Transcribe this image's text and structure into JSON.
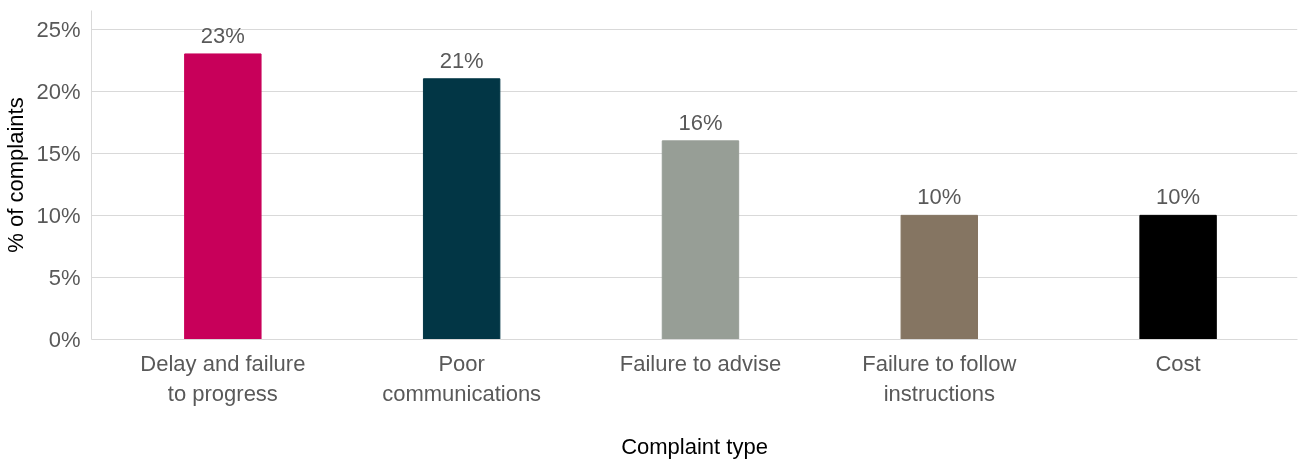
{
  "chart_data": {
    "type": "bar",
    "xlabel": "Complaint type",
    "ylabel": "% of complaints",
    "categories": [
      "Delay and failure\nto progress",
      "Poor\ncommunications",
      "Failure to advise",
      "Failure to follow\ninstructions",
      "Cost"
    ],
    "values": [
      23,
      21,
      16,
      10,
      10
    ],
    "colors": [
      "#c8005a",
      "#023645",
      "#979e96",
      "#857562",
      "#000000"
    ],
    "value_labels": [
      "23%",
      "21%",
      "16%",
      "10%",
      "10%"
    ],
    "ylim": [
      0,
      26.5
    ],
    "yticks": [
      {
        "value": 0,
        "label": "0%"
      },
      {
        "value": 5,
        "label": "5%"
      },
      {
        "value": 10,
        "label": "10%"
      },
      {
        "value": 15,
        "label": "15%"
      },
      {
        "value": 20,
        "label": "20%"
      },
      {
        "value": 25,
        "label": "25%"
      }
    ],
    "grid": "y"
  }
}
